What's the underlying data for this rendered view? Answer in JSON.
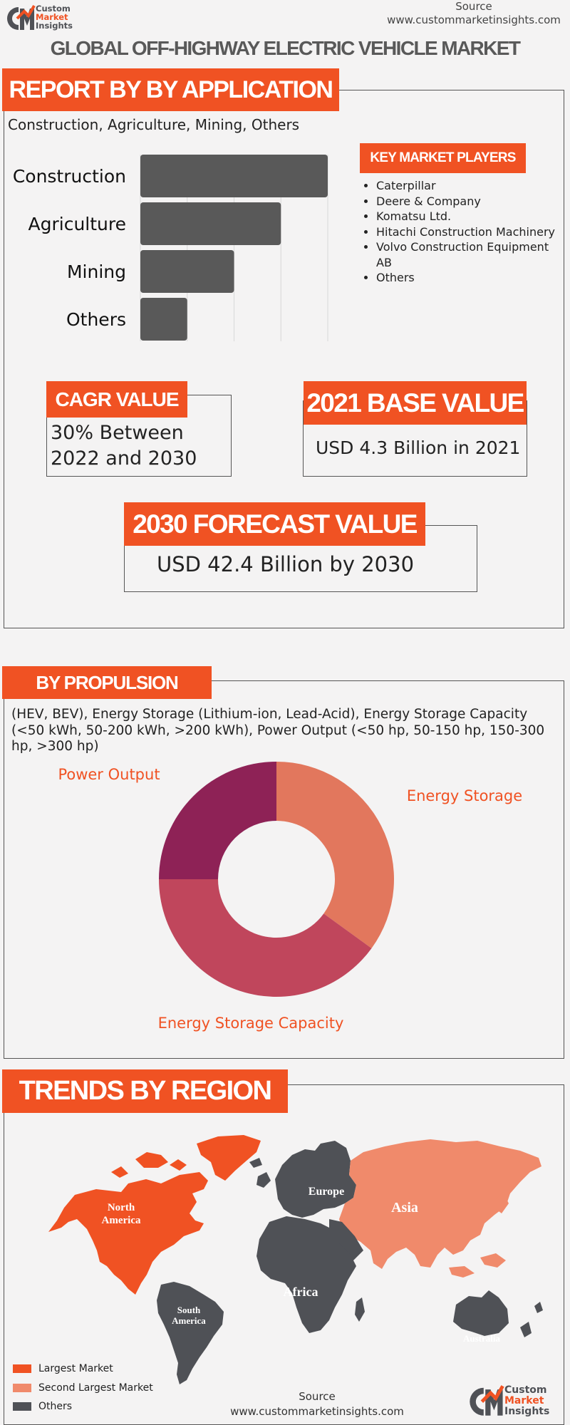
{
  "header": {
    "logo_line1": "Custom",
    "logo_line2": "Market",
    "logo_line3": "Insights",
    "source_label": "Source",
    "source_url": "www.custommarketinsights.com",
    "title": "GLOBAL OFF-HIGHWAY ELECTRIC VEHICLE MARKET"
  },
  "application": {
    "heading": "REPORT BY BY APPLICATION",
    "subtitle": "Construction, Agriculture, Mining, Others"
  },
  "chart_data": [
    {
      "type": "bar",
      "orientation": "horizontal",
      "categories": [
        "Construction",
        "Agriculture",
        "Mining",
        "Others"
      ],
      "values": [
        4,
        3,
        2,
        1
      ],
      "xlim": [
        0,
        4
      ],
      "grid": true,
      "color": "#595959"
    },
    {
      "type": "pie",
      "donut": true,
      "labels": [
        "Energy Storage",
        "Energy Storage Capacity",
        "Power Output"
      ],
      "values": [
        35,
        40,
        25
      ],
      "colors": [
        "#e2775d",
        "#c0465c",
        "#8e2256"
      ]
    }
  ],
  "key_players": {
    "heading": "KEY MARKET PLAYERS",
    "items": [
      "Caterpillar",
      "Deere & Company",
      "Komatsu Ltd.",
      "Hitachi Construction Machinery",
      "Volvo Construction Equipment AB",
      "Others"
    ]
  },
  "stats": {
    "cagr_heading": "CAGR VALUE",
    "cagr_value": "30% Between 2022 and 2030",
    "base_heading": "2021 BASE VALUE",
    "base_value": "USD 4.3 Billion in 2021",
    "forecast_heading": "2030 FORECAST  VALUE",
    "forecast_value": "USD 42.4 Billion by 2030"
  },
  "propulsion": {
    "heading": "BY PROPULSION",
    "description": "(HEV, BEV), Energy Storage (Lithium-ion, Lead-Acid), Energy Storage Capacity (<50 kWh, 50-200 kWh, >200 kWh), Power Output (<50 hp, 50-150 hp, 150-300 hp, >300 hp)"
  },
  "region": {
    "heading": "TRENDS BY REGION",
    "labels": {
      "north_america": "North America",
      "europe": "Europe",
      "asia": "Asia",
      "africa": "Africa",
      "south_america": "South America",
      "australia": "Australia"
    },
    "legend": [
      "Largest Market",
      "Second Largest Market",
      "Others"
    ],
    "colors": {
      "largest": "#f05223",
      "second": "#f08a6b",
      "others": "#4f5156"
    }
  },
  "footer": {
    "source_label": "Source",
    "source_url": "www.custommarketinsights.com",
    "logo_line1": "Custom",
    "logo_line2": "Market",
    "logo_line3": "Insights"
  },
  "colors": {
    "accent": "#f05223",
    "bar": "#595959"
  }
}
